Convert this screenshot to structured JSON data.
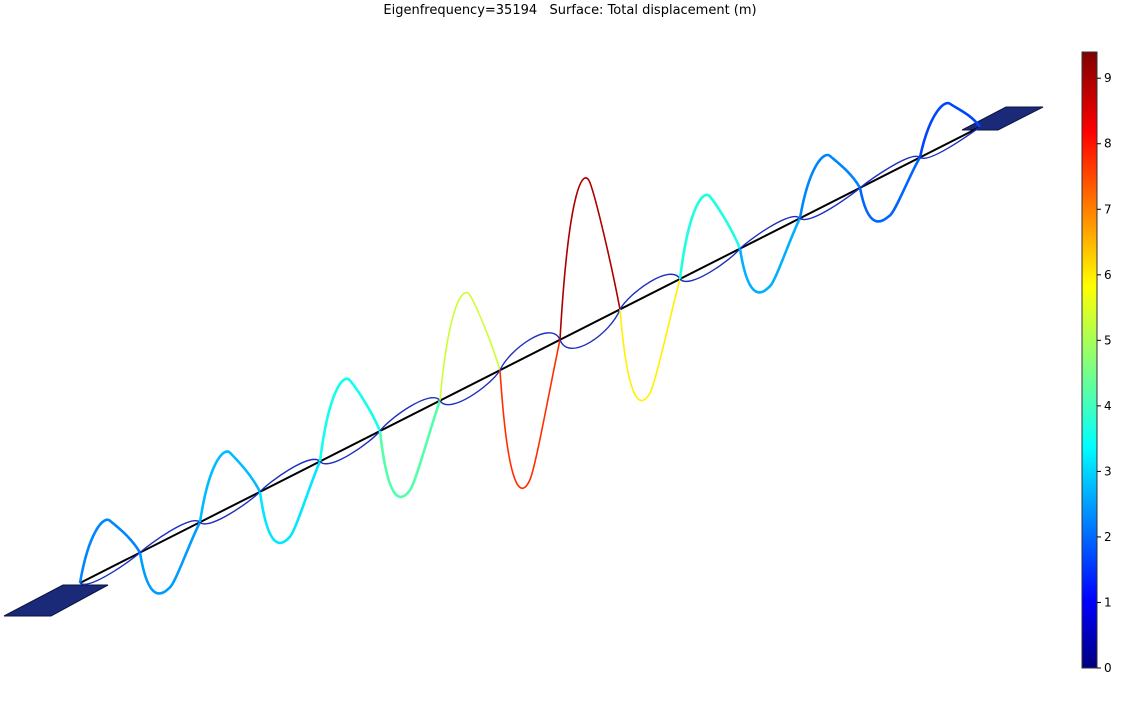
{
  "title": "Eigenfrequency=35194   Surface: Total displacement (m)",
  "chart_data": {
    "type": "surface",
    "title": "Eigenfrequency=35194   Surface: Total displacement (m)",
    "colormap": "rainbow",
    "colorbar": {
      "range": [
        0,
        9.4
      ],
      "ticks": [
        0,
        1,
        2,
        3,
        4,
        5,
        6,
        7,
        8,
        9
      ],
      "tick_labels": [
        "0",
        "1",
        "2",
        "3",
        "4",
        "5",
        "6",
        "7",
        "8",
        "9"
      ]
    },
    "mode_shape": {
      "loops": 15,
      "color_values": [
        2.4,
        2.6,
        2.9,
        3.3,
        3.7,
        4.3,
        5.4,
        7.8,
        9.0,
        6.0,
        3.8,
        2.8,
        2.4,
        2.1,
        1.8
      ]
    },
    "colors": {
      "anchor_fill": "#1a2a78",
      "axis_line": "#000000"
    }
  }
}
